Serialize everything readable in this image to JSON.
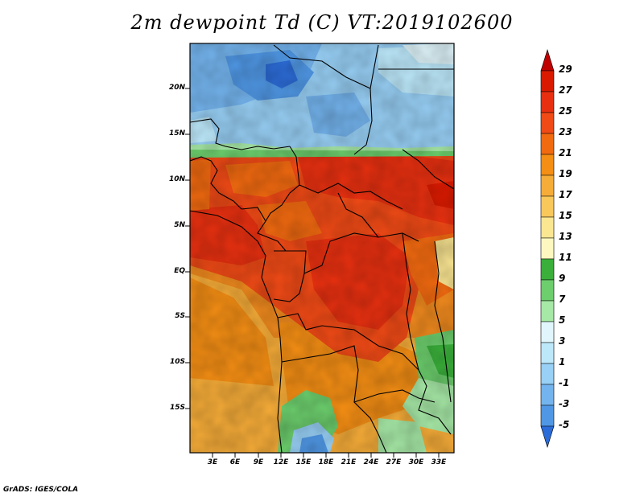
{
  "title": "2m dewpoint Td (C) VT:2019102600",
  "lat_labels": [
    "20N",
    "15N",
    "10N",
    "5N",
    "EQ",
    "5S",
    "10S",
    "15S"
  ],
  "lon_labels": [
    "3E",
    "6E",
    "9E",
    "12E",
    "15E",
    "18E",
    "21E",
    "24E",
    "27E",
    "30E",
    "33E"
  ],
  "colorbar": {
    "labels": [
      "29",
      "27",
      "25",
      "23",
      "21",
      "19",
      "17",
      "15",
      "13",
      "11",
      "9",
      "7",
      "5",
      "3",
      "1",
      "-1",
      "-3",
      "-5"
    ],
    "colors": [
      "#c00000",
      "#d91a00",
      "#e83010",
      "#f04a16",
      "#f26a10",
      "#f48e14",
      "#f6ac38",
      "#f8c85a",
      "#fbe692",
      "#fdf8c0",
      "#3ab03a",
      "#6cce6c",
      "#a6e8a6",
      "#e0f6fc",
      "#bce8fa",
      "#98d0f6",
      "#74b4ee",
      "#5098e6",
      "#2c6cd8"
    ]
  },
  "credit": "GrADS: IGES/COLA"
}
